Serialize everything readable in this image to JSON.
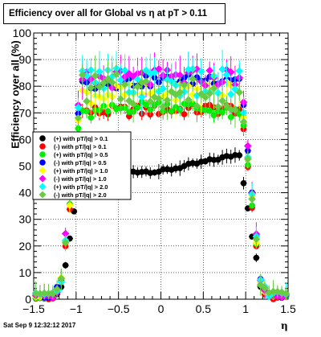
{
  "chart_data": {
    "type": "scatter",
    "title": "Efficiency over all for Global vs   η at pT > 0.11",
    "xlabel": "η",
    "ylabel": "Efficiency over all (%)",
    "xlim": [
      -1.5,
      1.5
    ],
    "ylim": [
      0,
      100
    ],
    "x_ticks": [
      "−1.5",
      "−1",
      "−0.5",
      "0",
      "0.5",
      "1",
      "1.5"
    ],
    "y_ticks": [
      "0",
      "10",
      "20",
      "30",
      "40",
      "50",
      "60",
      "70",
      "80",
      "90",
      "100"
    ],
    "grid": true,
    "legend_position": "left-middle",
    "series": [
      {
        "name": "(+) with pT/|q| > 0.1",
        "color": "#000000",
        "marker": "circle",
        "levels": [
          48,
          52,
          0,
          0,
          0,
          0
        ]
      },
      {
        "name": "(-) with pT/|q| > 0.1",
        "color": "#ff0000",
        "marker": "circle",
        "levels": [
          70,
          72,
          1.5,
          1.3,
          0,
          0
        ]
      },
      {
        "name": "(+) with pT/|q| > 0.5",
        "color": "#00ee00",
        "marker": "circle",
        "levels": [
          74,
          74,
          1.4,
          2.6,
          0.3,
          1.2
        ]
      },
      {
        "name": "(-) with pT/|q| > 0.5",
        "color": "#0000ff",
        "marker": "circle",
        "levels": [
          80,
          84,
          2.8,
          1.5,
          0.6,
          0.9
        ]
      },
      {
        "name": "(+) with pT/|q| > 1.0",
        "color": "#ffff00",
        "marker": "diamond",
        "levels": [
          76,
          80,
          3.2,
          3.0,
          0.8,
          1.0
        ]
      },
      {
        "name": "(-) with pT/|q| > 1.0",
        "color": "#ff00ff",
        "marker": "diamond",
        "levels": [
          82,
          84,
          2.5,
          2.3,
          1.0,
          0.7
        ]
      },
      {
        "name": "(+) with pT/|q| > 2.0",
        "color": "#00ffff",
        "marker": "diamond",
        "levels": [
          82,
          80,
          5.0,
          4.5,
          1.5,
          1.8
        ]
      },
      {
        "name": "(-) with pT/|q| > 2.0",
        "color": "#66cc44",
        "marker": "diamond",
        "levels": [
          80,
          76,
          6.0,
          5.5,
          1.3,
          2.0
        ]
      }
    ]
  },
  "legend": {
    "entries": [
      "(+) with pT/|q| > 0.1",
      "(-) with pT/|q| > 0.1",
      "(+) with pT/|q| > 0.5",
      "(-) with pT/|q| > 0.5",
      "(+) with pT/|q| > 1.0",
      "(-) with pT/|q| > 1.0",
      "(+) with pT/|q| > 2.0",
      "(-) with pT/|q| > 2.0"
    ]
  },
  "footer": {
    "timestamp": "Sat Sep  9 12:32:12 2017"
  }
}
